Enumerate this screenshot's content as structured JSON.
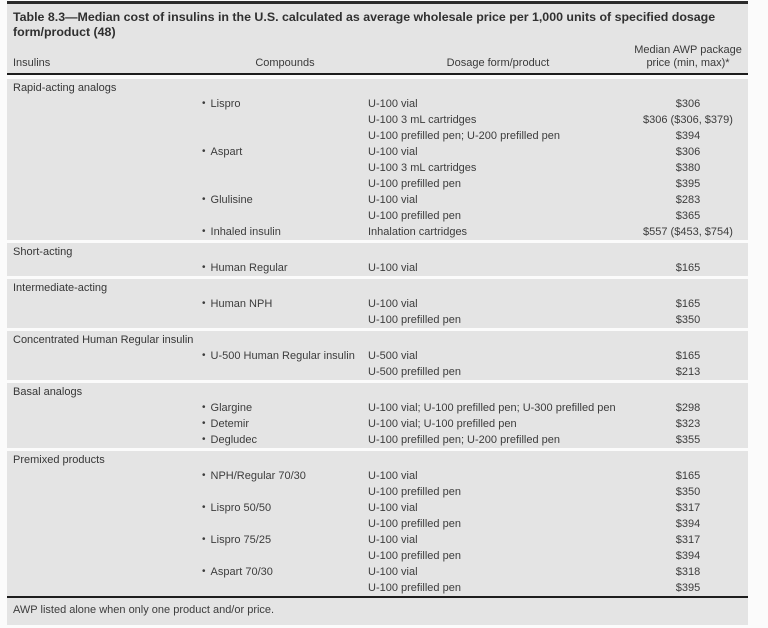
{
  "table": {
    "title": "Table 8.3—Median cost of insulins in the U.S. calculated as average wholesale price per 1,000 units of specified dosage form/product (48)",
    "columns": {
      "insulins": "Insulins",
      "compounds": "Compounds",
      "dosage": "Dosage form/product",
      "price_line1": "Median AWP package",
      "price_line2": "price (min, max)*"
    },
    "bullet": "•",
    "colors": {
      "section_background": "#e4e4e4",
      "rule": "#1d1d1d",
      "text": "#3c3c3c"
    },
    "sections": [
      {
        "name": "Rapid-acting analogs",
        "rows": [
          {
            "compound": "Lispro",
            "dosage": "U-100 vial",
            "price": "$306"
          },
          {
            "compound": "",
            "dosage": "U-100 3 mL cartridges",
            "price": "$306 ($306, $379)"
          },
          {
            "compound": "",
            "dosage": "U-100 prefilled pen; U-200 prefilled pen",
            "price": "$394"
          },
          {
            "compound": "Aspart",
            "dosage": "U-100 vial",
            "price": "$306"
          },
          {
            "compound": "",
            "dosage": "U-100 3 mL cartridges",
            "price": "$380"
          },
          {
            "compound": "",
            "dosage": "U-100 prefilled pen",
            "price": "$395"
          },
          {
            "compound": "Glulisine",
            "dosage": "U-100 vial",
            "price": "$283"
          },
          {
            "compound": "",
            "dosage": "U-100 prefilled pen",
            "price": "$365"
          },
          {
            "compound": "Inhaled insulin",
            "dosage": "Inhalation cartridges",
            "price": "$557 ($453, $754)"
          }
        ]
      },
      {
        "name": "Short-acting",
        "rows": [
          {
            "compound": "Human Regular",
            "dosage": "U-100 vial",
            "price": "$165"
          }
        ]
      },
      {
        "name": "Intermediate-acting",
        "rows": [
          {
            "compound": "Human NPH",
            "dosage": "U-100 vial",
            "price": "$165"
          },
          {
            "compound": "",
            "dosage": "U-100 prefilled pen",
            "price": "$350"
          }
        ]
      },
      {
        "name": "Concentrated Human Regular insulin",
        "rows": [
          {
            "compound": "U-500 Human Regular insulin",
            "dosage": "U-500 vial",
            "price": "$165"
          },
          {
            "compound": "",
            "dosage": "U-500 prefilled pen",
            "price": "$213"
          }
        ]
      },
      {
        "name": "Basal analogs",
        "rows": [
          {
            "compound": "Glargine",
            "dosage": "U-100 vial; U-100 prefilled pen; U-300 prefilled pen",
            "price": "$298"
          },
          {
            "compound": "Detemir",
            "dosage": "U-100 vial; U-100 prefilled pen",
            "price": "$323"
          },
          {
            "compound": "Degludec",
            "dosage": "U-100 prefilled pen; U-200 prefilled pen",
            "price": "$355"
          }
        ]
      },
      {
        "name": "Premixed products",
        "rows": [
          {
            "compound": "NPH/Regular 70/30",
            "dosage": "U-100 vial",
            "price": "$165"
          },
          {
            "compound": "",
            "dosage": "U-100 prefilled pen",
            "price": "$350"
          },
          {
            "compound": "Lispro 50/50",
            "dosage": "U-100 vial",
            "price": "$317"
          },
          {
            "compound": "",
            "dosage": "U-100 prefilled pen",
            "price": "$394"
          },
          {
            "compound": "Lispro 75/25",
            "dosage": "U-100 vial",
            "price": "$317"
          },
          {
            "compound": "",
            "dosage": "U-100 prefilled pen",
            "price": "$394"
          },
          {
            "compound": "Aspart 70/30",
            "dosage": "U-100 vial",
            "price": "$318"
          },
          {
            "compound": "",
            "dosage": "U-100 prefilled pen",
            "price": "$395"
          }
        ]
      }
    ],
    "footnote": "AWP listed alone when only one product and/or price."
  }
}
